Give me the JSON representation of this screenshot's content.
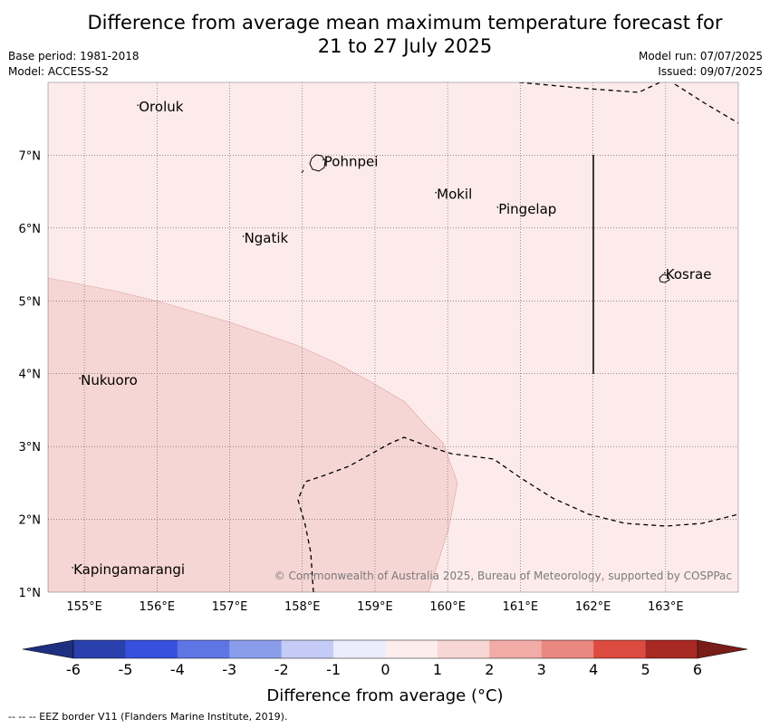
{
  "title": {
    "line1": "Difference from average mean maximum temperature forecast for",
    "line2": "21 to 27 July 2025"
  },
  "meta": {
    "base_period": "Base period: 1981-2018",
    "model": "Model: ACCESS-S2",
    "model_run": "Model run: 07/07/2025",
    "issued": "Issued: 09/07/2025"
  },
  "map": {
    "lon_range": [
      154.5,
      164.0
    ],
    "lat_range": [
      1.0,
      8.0
    ],
    "lon_ticks": [
      "155°E",
      "156°E",
      "157°E",
      "158°E",
      "159°E",
      "160°E",
      "161°E",
      "162°E",
      "163°E"
    ],
    "lat_ticks": [
      "1°N",
      "2°N",
      "3°N",
      "4°N",
      "5°N",
      "6°N",
      "7°N"
    ],
    "background_category": "0 to 1",
    "background_color": "#fcebea",
    "anomaly_region_category": "1 to 2",
    "anomaly_region_color": "#f6d6d4",
    "places": [
      {
        "name": "Oroluk",
        "lon": 155.75,
        "lat": 7.6
      },
      {
        "name": "Pohnpei",
        "lon": 158.3,
        "lat": 6.85
      },
      {
        "name": "Mokil",
        "lon": 159.85,
        "lat": 6.4
      },
      {
        "name": "Pingelap",
        "lon": 160.7,
        "lat": 6.2
      },
      {
        "name": "Ngatik",
        "lon": 157.2,
        "lat": 5.8
      },
      {
        "name": "Kosrae",
        "lon": 163.0,
        "lat": 5.3
      },
      {
        "name": "Nukuoro",
        "lon": 154.95,
        "lat": 3.85
      },
      {
        "name": "Kapingamarangi",
        "lon": 154.85,
        "lat": 1.25
      }
    ],
    "copyright": "© Commonwealth of Australia 2025, Bureau of Meteorology, supported by COSPPac"
  },
  "colorbar": {
    "label": "Difference from average (°C)",
    "ticks": [
      "-6",
      "-5",
      "-4",
      "-3",
      "-2",
      "-1",
      "0",
      "1",
      "2",
      "3",
      "4",
      "5",
      "6"
    ],
    "colors": [
      "#2a41ad",
      "#3750dd",
      "#5e76e4",
      "#8a9ded",
      "#c4cbf6",
      "#ebedfc",
      "#fdeeed",
      "#f7d6d4",
      "#f1aca8",
      "#e98880",
      "#db4b3f",
      "#a82824"
    ],
    "low_extend_color": "#1e2f80",
    "high_extend_color": "#7a1c18"
  },
  "footer": "-- -- -- EEZ border V11 (Flanders Marine Institute, 2019)."
}
